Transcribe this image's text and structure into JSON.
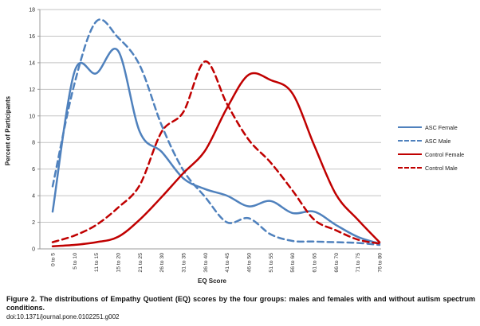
{
  "chart_data": {
    "type": "line",
    "title": "",
    "xlabel": "EQ Score",
    "ylabel": "Percent of Participants",
    "ylim": [
      0,
      18
    ],
    "ytick_step": 2,
    "grid": true,
    "line_style": "smoothed",
    "legend_position": "right-outside",
    "categories": [
      "0 to 5",
      "5 to 10",
      "11 to 15",
      "15 to 20",
      "21 to 25",
      "26 to 30",
      "31 to 35",
      "36 to 40",
      "41 to 45",
      "46 to 50",
      "51 to 55",
      "56 to 60",
      "61 to 65",
      "66 to 70",
      "71 to 75",
      "76 to 80"
    ],
    "series": [
      {
        "name": "ASC Female",
        "color": "#4f81bd",
        "dash": "solid",
        "values": [
          2.8,
          13.3,
          13.2,
          14.9,
          8.8,
          7.3,
          5.3,
          4.5,
          4.0,
          3.2,
          3.6,
          2.7,
          2.8,
          1.8,
          0.9,
          0.4
        ]
      },
      {
        "name": "ASC Male",
        "color": "#4f81bd",
        "dash": "dashed",
        "values": [
          4.7,
          12.4,
          17.1,
          15.9,
          13.8,
          9.3,
          5.9,
          3.9,
          2.0,
          2.3,
          1.1,
          0.6,
          0.55,
          0.5,
          0.45,
          0.3
        ]
      },
      {
        "name": "Control Female",
        "color": "#c00000",
        "dash": "solid",
        "values": [
          0.2,
          0.3,
          0.5,
          0.9,
          2.2,
          3.9,
          5.7,
          7.4,
          10.6,
          13.1,
          12.7,
          11.7,
          7.8,
          4.1,
          2.2,
          0.5
        ]
      },
      {
        "name": "Control Male",
        "color": "#c00000",
        "dash": "dashed",
        "values": [
          0.5,
          1.0,
          1.8,
          3.1,
          4.8,
          8.8,
          10.3,
          14.1,
          10.9,
          8.2,
          6.5,
          4.4,
          2.2,
          1.4,
          0.7,
          0.4
        ]
      }
    ],
    "colors": {
      "gridline": "#c3c3c3",
      "axis": "#9b9b9b",
      "tick_text": "#2b2b2b"
    }
  },
  "caption": {
    "figure_label": "Figure 2.",
    "text": "The distributions of Empathy Quotient (EQ) scores by the four groups: males and females with and without autism spectrum conditions.",
    "doi": "doi:10.1371/journal.pone.0102251.g002"
  }
}
